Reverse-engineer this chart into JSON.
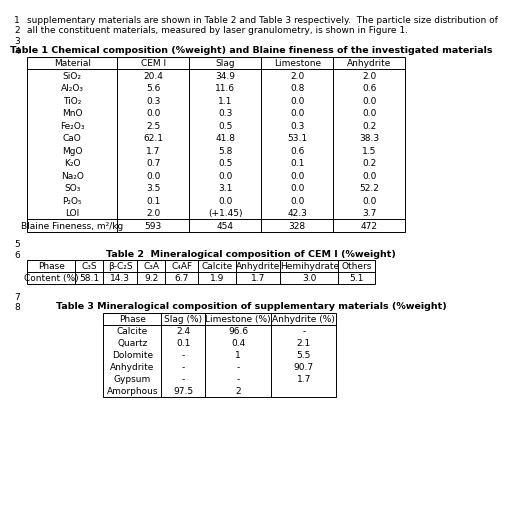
{
  "line1": "supplementary materials are shown in Table 2 and Table 3 respectively.  The particle size distribution of",
  "line2": "all the constituent materials, measured by laser granulometry, is shown in Figure 1.",
  "table1_title": "Table 1 Chemical composition (%weight) and Blaine fineness of the investigated materials",
  "table1_headers": [
    "Material",
    "CEM I",
    "Slag",
    "Limestone",
    "Anhydrite"
  ],
  "table1_rows": [
    [
      "SiO₂",
      "20.4",
      "34.9",
      "2.0",
      "2.0"
    ],
    [
      "Al₂O₃",
      "5.6",
      "11.6",
      "0.8",
      "0.6"
    ],
    [
      "TiO₂",
      "0.3",
      "1.1",
      "0.0",
      "0.0"
    ],
    [
      "MnO",
      "0.0",
      "0.3",
      "0.0",
      "0.0"
    ],
    [
      "Fe₂O₃",
      "2.5",
      "0.5",
      "0.3",
      "0.2"
    ],
    [
      "CaO",
      "62.1",
      "41.8",
      "53.1",
      "38.3"
    ],
    [
      "MgO",
      "1.7",
      "5.8",
      "0.6",
      "1.5"
    ],
    [
      "K₂O",
      "0.7",
      "0.5",
      "0.1",
      "0.2"
    ],
    [
      "Na₂O",
      "0.0",
      "0.0",
      "0.0",
      "0.0"
    ],
    [
      "SO₃",
      "3.5",
      "3.1",
      "0.0",
      "52.2"
    ],
    [
      "P₂O₅",
      "0.1",
      "0.0",
      "0.0",
      "0.0"
    ],
    [
      "LOI",
      "2.0",
      "(+1.45)",
      "42.3",
      "3.7"
    ],
    [
      "Blaine Fineness, m²/kg",
      "593",
      "454",
      "328",
      "472"
    ]
  ],
  "table2_title": "Table 2  Mineralogical composition of CEM I (%weight)",
  "table2_headers": [
    "Phase",
    "C₃S",
    "β-C₂S",
    "C₃A",
    "C₄AF",
    "Calcite",
    "Anhydrite",
    "Hemihydrate",
    "Others"
  ],
  "table2_rows": [
    [
      "Content (%)",
      "58.1",
      "14.3",
      "9.2",
      "6.7",
      "1.9",
      "1.7",
      "3.0",
      "5.1"
    ]
  ],
  "table3_title": "Table 3 Mineralogical composition of supplementary materials (%weight)",
  "table3_headers": [
    "Phase",
    "Slag (%)",
    "Limestone (%)",
    "Anhydrite (%)"
  ],
  "table3_rows": [
    [
      "Calcite",
      "2.4",
      "96.6",
      "-"
    ],
    [
      "Quartz",
      "0.1",
      "0.4",
      "2.1"
    ],
    [
      "Dolomite",
      "-",
      "1",
      "5.5"
    ],
    [
      "Anhydrite",
      "-",
      "-",
      "90.7"
    ],
    [
      "Gypsum",
      "-",
      "-",
      "1.7"
    ],
    [
      "Amorphous",
      "97.5",
      "2",
      ""
    ]
  ],
  "bg_color": "#ffffff",
  "text_color": "#000000",
  "font_size": 6.5,
  "title_font_size": 6.8
}
